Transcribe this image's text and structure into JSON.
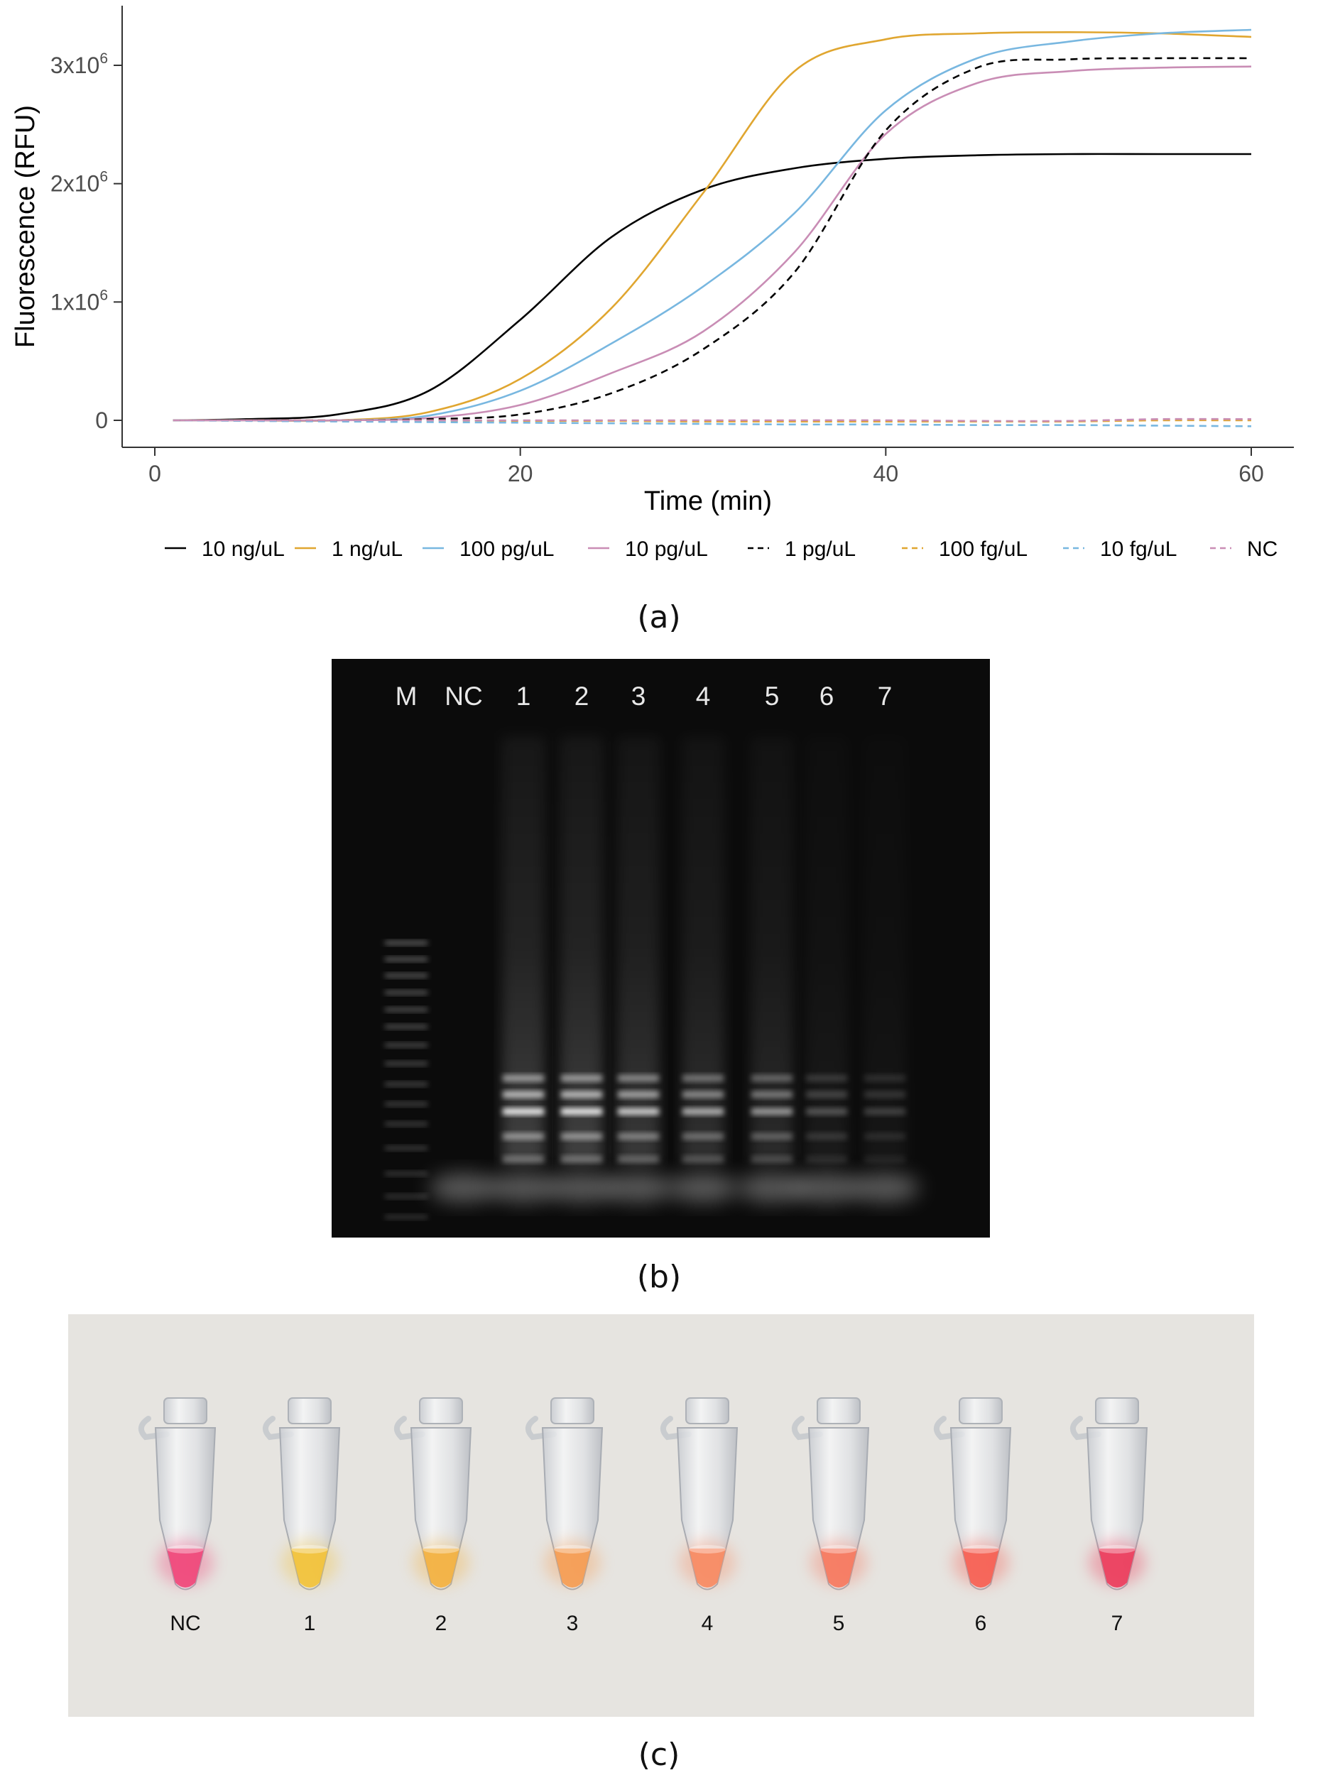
{
  "panels": {
    "a": {
      "caption": "(a)"
    },
    "b": {
      "caption": "(b)",
      "lane_labels": [
        "M",
        "NC",
        "1",
        "2",
        "3",
        "4",
        "5",
        "6",
        "7"
      ]
    },
    "c": {
      "caption": "(c)",
      "tube_labels": [
        "NC",
        "1",
        "2",
        "3",
        "4",
        "5",
        "6",
        "7"
      ],
      "tube_colors": [
        "#f0467a",
        "#f2c23a",
        "#f3b140",
        "#f59c52",
        "#f78a62",
        "#f6785e",
        "#f65f52",
        "#ec3d5c"
      ]
    }
  },
  "chart_data": {
    "type": "line",
    "title": "",
    "xlabel": "Time (min)",
    "ylabel": "Fluorescence (RFU)",
    "xlim": [
      0,
      60
    ],
    "ylim": [
      0,
      3400000
    ],
    "x_ticks": [
      0,
      20,
      40,
      60
    ],
    "x_tick_labels": [
      "0",
      "20",
      "40",
      "60"
    ],
    "y_ticks": [
      0,
      1000000,
      2000000,
      3000000
    ],
    "y_tick_labels": [
      {
        "base": "0",
        "exp": ""
      },
      {
        "base": "1x10",
        "exp": "6"
      },
      {
        "base": "2x10",
        "exp": "6"
      },
      {
        "base": "3x10",
        "exp": "6"
      }
    ],
    "legend_position": "bottom",
    "grid": false,
    "x": [
      1,
      5,
      10,
      15,
      20,
      25,
      30,
      35,
      40,
      45,
      50,
      55,
      60
    ],
    "series": [
      {
        "name": "10 ng/uL",
        "color": "#000000",
        "dash": "solid",
        "values": [
          0,
          10000,
          50000,
          250000,
          850000,
          1550000,
          1950000,
          2130000,
          2210000,
          2240000,
          2250000,
          2250000,
          2250000
        ]
      },
      {
        "name": "1 ng/uL",
        "color": "#e0a630",
        "dash": "solid",
        "values": [
          0,
          0,
          0,
          70000,
          350000,
          950000,
          1920000,
          2950000,
          3220000,
          3270000,
          3280000,
          3270000,
          3240000
        ]
      },
      {
        "name": "100 pg/uL",
        "color": "#78b7e0",
        "dash": "solid",
        "values": [
          0,
          0,
          0,
          40000,
          250000,
          650000,
          1130000,
          1750000,
          2620000,
          3060000,
          3200000,
          3270000,
          3300000
        ]
      },
      {
        "name": "10 pg/uL",
        "color": "#c98db5",
        "dash": "solid",
        "values": [
          0,
          0,
          0,
          20000,
          130000,
          400000,
          750000,
          1420000,
          2420000,
          2850000,
          2950000,
          2980000,
          2990000
        ]
      },
      {
        "name": "1 pg/uL",
        "color": "#000000",
        "dash": "dashed",
        "values": [
          0,
          0,
          0,
          10000,
          50000,
          230000,
          600000,
          1250000,
          2450000,
          2980000,
          3050000,
          3060000,
          3060000
        ]
      },
      {
        "name": "100 fg/uL",
        "color": "#e0a630",
        "dash": "dashed",
        "values": [
          0,
          0,
          0,
          0,
          -5000,
          -5000,
          -10000,
          -10000,
          -10000,
          -10000,
          -10000,
          0,
          0
        ]
      },
      {
        "name": "10 fg/uL",
        "color": "#78b7e0",
        "dash": "dashed",
        "values": [
          0,
          -5000,
          -10000,
          -15000,
          -20000,
          -25000,
          -30000,
          -35000,
          -35000,
          -40000,
          -40000,
          -45000,
          -50000
        ]
      },
      {
        "name": "NC",
        "color": "#c98db5",
        "dash": "dashed",
        "values": [
          0,
          0,
          0,
          0,
          0,
          0,
          0,
          0,
          0,
          -5000,
          -5000,
          10000,
          10000
        ]
      }
    ]
  }
}
